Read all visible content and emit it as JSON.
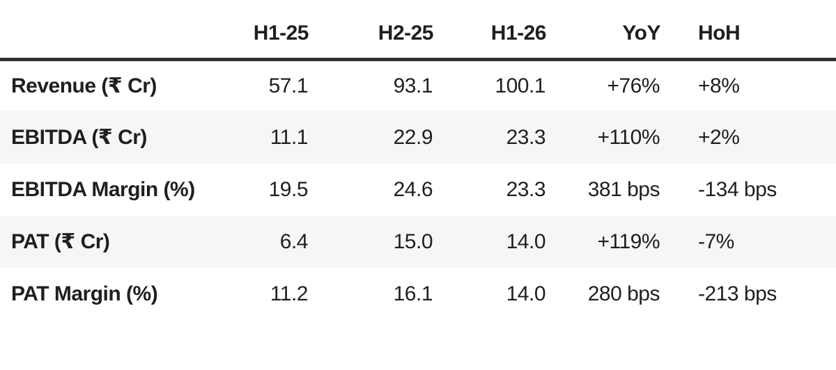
{
  "theme": {
    "background": "#ffffff",
    "stripe": "#f6f6f6",
    "rule": "#303030",
    "text": "#1f1f1f"
  },
  "chart_data": {
    "type": "table",
    "columns": [
      "",
      "H1-25",
      "H2-25",
      "H1-26",
      "YoY",
      "HoH"
    ],
    "rows": [
      {
        "label": "Revenue (₹ Cr)",
        "values": [
          "57.1",
          "93.1",
          "100.1",
          "+76%",
          "+8%"
        ]
      },
      {
        "label": "EBITDA (₹ Cr)",
        "values": [
          "11.1",
          "22.9",
          "23.3",
          "+110%",
          "+2%"
        ]
      },
      {
        "label": "EBITDA Margin (%)",
        "values": [
          "19.5",
          "24.6",
          "23.3",
          "381 bps",
          "-134 bps"
        ]
      },
      {
        "label": "PAT (₹ Cr)",
        "values": [
          "6.4",
          "15.0",
          "14.0",
          "+119%",
          "-7%"
        ]
      },
      {
        "label": "PAT Margin (%)",
        "values": [
          "11.2",
          "16.1",
          "14.0",
          "280 bps",
          "-213 bps"
        ]
      }
    ]
  }
}
